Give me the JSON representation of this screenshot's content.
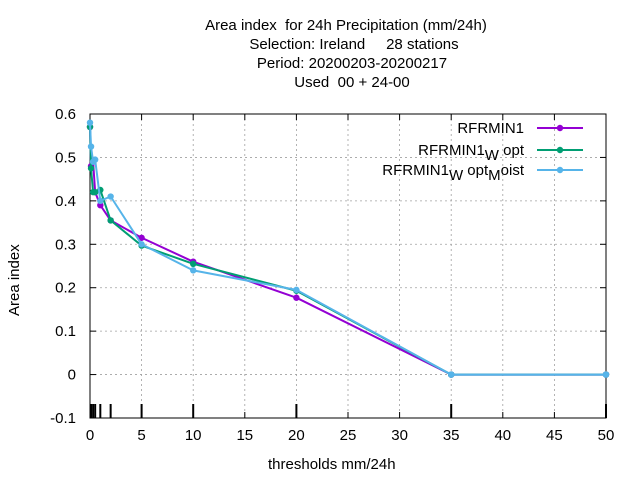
{
  "chart_data": {
    "type": "line",
    "title_lines": [
      "Area index  for 24h Precipitation (mm/24h)",
      "Selection: Ireland     28 stations",
      "Period: 20200203-20200217",
      "Used  00 + 24-00"
    ],
    "xlabel": "thresholds mm/24h",
    "ylabel": "Area index",
    "xlim": [
      0,
      50
    ],
    "ylim": [
      -0.1,
      0.6
    ],
    "x_ticks": [
      "0",
      "5",
      "10",
      "15",
      "20",
      "25",
      "30",
      "35",
      "40",
      "45",
      "50"
    ],
    "y_ticks": [
      "-0.1",
      "0",
      "0.1",
      "0.2",
      "0.3",
      "0.4",
      "0.5",
      "0.6"
    ],
    "grid": true,
    "legend_position": "top-right",
    "threshold_marks": [
      0.1,
      0.3,
      0.5,
      1,
      2,
      5,
      10,
      20,
      35,
      50
    ],
    "series": [
      {
        "name": "RFRMIN1",
        "legend_parts": [
          "RFRMIN1",
          "",
          "",
          "",
          ""
        ],
        "color": "#9400d3",
        "x": [
          0,
          0.1,
          0.3,
          0.5,
          1,
          2,
          5,
          10,
          20,
          35,
          50
        ],
        "y": [
          0.57,
          0.48,
          0.49,
          0.42,
          0.39,
          0.355,
          0.315,
          0.26,
          0.177,
          0.0,
          0.0
        ]
      },
      {
        "name": "RFRMIN1Wopt",
        "legend_parts": [
          "RFRMIN1",
          "W",
          "opt",
          "",
          ""
        ],
        "color": "#009e73",
        "x": [
          0,
          0.1,
          0.3,
          0.5,
          1,
          2,
          5,
          10,
          20,
          35,
          50
        ],
        "y": [
          0.57,
          0.475,
          0.42,
          0.42,
          0.425,
          0.355,
          0.297,
          0.255,
          0.193,
          0.0,
          0.0
        ]
      },
      {
        "name": "RFRMIN1WoptMoist",
        "legend_parts": [
          "RFRMIN1",
          "W",
          "opt",
          "M",
          "oist"
        ],
        "color": "#56b4e9",
        "x": [
          0,
          0.1,
          0.3,
          0.5,
          1,
          2,
          5,
          10,
          20,
          35,
          50
        ],
        "y": [
          0.58,
          0.525,
          0.49,
          0.495,
          0.4,
          0.41,
          0.3,
          0.24,
          0.195,
          0.0,
          0.0
        ]
      }
    ]
  }
}
